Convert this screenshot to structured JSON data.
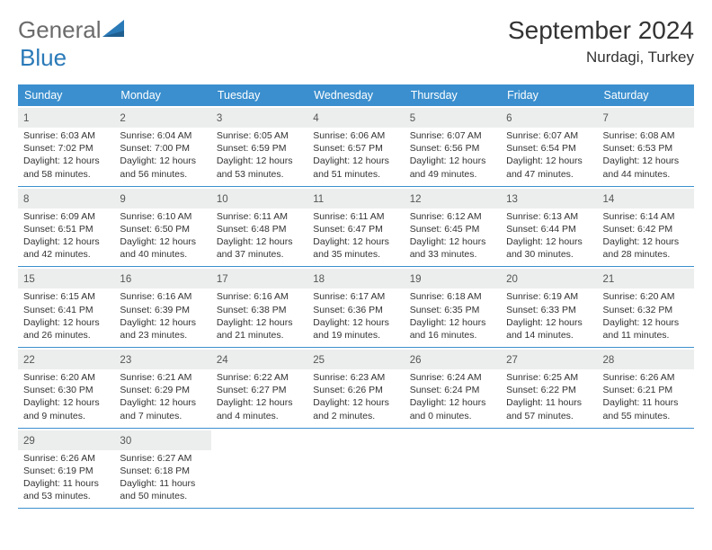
{
  "brand": {
    "name1": "General",
    "name2": "Blue"
  },
  "title": "September 2024",
  "location": "Nurdagi, Turkey",
  "colors": {
    "header_bg": "#3b8fce",
    "header_text": "#ffffff",
    "daynum_bg": "#eceded",
    "week_border": "#3b8fce",
    "body_text": "#333333",
    "page_bg": "#ffffff",
    "brand_gray": "#6b6b6b",
    "brand_blue": "#2a7ab8"
  },
  "days_of_week": [
    "Sunday",
    "Monday",
    "Tuesday",
    "Wednesday",
    "Thursday",
    "Friday",
    "Saturday"
  ],
  "weeks": [
    [
      {
        "n": "1",
        "sr": "Sunrise: 6:03 AM",
        "ss": "Sunset: 7:02 PM",
        "dl": "Daylight: 12 hours and 58 minutes."
      },
      {
        "n": "2",
        "sr": "Sunrise: 6:04 AM",
        "ss": "Sunset: 7:00 PM",
        "dl": "Daylight: 12 hours and 56 minutes."
      },
      {
        "n": "3",
        "sr": "Sunrise: 6:05 AM",
        "ss": "Sunset: 6:59 PM",
        "dl": "Daylight: 12 hours and 53 minutes."
      },
      {
        "n": "4",
        "sr": "Sunrise: 6:06 AM",
        "ss": "Sunset: 6:57 PM",
        "dl": "Daylight: 12 hours and 51 minutes."
      },
      {
        "n": "5",
        "sr": "Sunrise: 6:07 AM",
        "ss": "Sunset: 6:56 PM",
        "dl": "Daylight: 12 hours and 49 minutes."
      },
      {
        "n": "6",
        "sr": "Sunrise: 6:07 AM",
        "ss": "Sunset: 6:54 PM",
        "dl": "Daylight: 12 hours and 47 minutes."
      },
      {
        "n": "7",
        "sr": "Sunrise: 6:08 AM",
        "ss": "Sunset: 6:53 PM",
        "dl": "Daylight: 12 hours and 44 minutes."
      }
    ],
    [
      {
        "n": "8",
        "sr": "Sunrise: 6:09 AM",
        "ss": "Sunset: 6:51 PM",
        "dl": "Daylight: 12 hours and 42 minutes."
      },
      {
        "n": "9",
        "sr": "Sunrise: 6:10 AM",
        "ss": "Sunset: 6:50 PM",
        "dl": "Daylight: 12 hours and 40 minutes."
      },
      {
        "n": "10",
        "sr": "Sunrise: 6:11 AM",
        "ss": "Sunset: 6:48 PM",
        "dl": "Daylight: 12 hours and 37 minutes."
      },
      {
        "n": "11",
        "sr": "Sunrise: 6:11 AM",
        "ss": "Sunset: 6:47 PM",
        "dl": "Daylight: 12 hours and 35 minutes."
      },
      {
        "n": "12",
        "sr": "Sunrise: 6:12 AM",
        "ss": "Sunset: 6:45 PM",
        "dl": "Daylight: 12 hours and 33 minutes."
      },
      {
        "n": "13",
        "sr": "Sunrise: 6:13 AM",
        "ss": "Sunset: 6:44 PM",
        "dl": "Daylight: 12 hours and 30 minutes."
      },
      {
        "n": "14",
        "sr": "Sunrise: 6:14 AM",
        "ss": "Sunset: 6:42 PM",
        "dl": "Daylight: 12 hours and 28 minutes."
      }
    ],
    [
      {
        "n": "15",
        "sr": "Sunrise: 6:15 AM",
        "ss": "Sunset: 6:41 PM",
        "dl": "Daylight: 12 hours and 26 minutes."
      },
      {
        "n": "16",
        "sr": "Sunrise: 6:16 AM",
        "ss": "Sunset: 6:39 PM",
        "dl": "Daylight: 12 hours and 23 minutes."
      },
      {
        "n": "17",
        "sr": "Sunrise: 6:16 AM",
        "ss": "Sunset: 6:38 PM",
        "dl": "Daylight: 12 hours and 21 minutes."
      },
      {
        "n": "18",
        "sr": "Sunrise: 6:17 AM",
        "ss": "Sunset: 6:36 PM",
        "dl": "Daylight: 12 hours and 19 minutes."
      },
      {
        "n": "19",
        "sr": "Sunrise: 6:18 AM",
        "ss": "Sunset: 6:35 PM",
        "dl": "Daylight: 12 hours and 16 minutes."
      },
      {
        "n": "20",
        "sr": "Sunrise: 6:19 AM",
        "ss": "Sunset: 6:33 PM",
        "dl": "Daylight: 12 hours and 14 minutes."
      },
      {
        "n": "21",
        "sr": "Sunrise: 6:20 AM",
        "ss": "Sunset: 6:32 PM",
        "dl": "Daylight: 12 hours and 11 minutes."
      }
    ],
    [
      {
        "n": "22",
        "sr": "Sunrise: 6:20 AM",
        "ss": "Sunset: 6:30 PM",
        "dl": "Daylight: 12 hours and 9 minutes."
      },
      {
        "n": "23",
        "sr": "Sunrise: 6:21 AM",
        "ss": "Sunset: 6:29 PM",
        "dl": "Daylight: 12 hours and 7 minutes."
      },
      {
        "n": "24",
        "sr": "Sunrise: 6:22 AM",
        "ss": "Sunset: 6:27 PM",
        "dl": "Daylight: 12 hours and 4 minutes."
      },
      {
        "n": "25",
        "sr": "Sunrise: 6:23 AM",
        "ss": "Sunset: 6:26 PM",
        "dl": "Daylight: 12 hours and 2 minutes."
      },
      {
        "n": "26",
        "sr": "Sunrise: 6:24 AM",
        "ss": "Sunset: 6:24 PM",
        "dl": "Daylight: 12 hours and 0 minutes."
      },
      {
        "n": "27",
        "sr": "Sunrise: 6:25 AM",
        "ss": "Sunset: 6:22 PM",
        "dl": "Daylight: 11 hours and 57 minutes."
      },
      {
        "n": "28",
        "sr": "Sunrise: 6:26 AM",
        "ss": "Sunset: 6:21 PM",
        "dl": "Daylight: 11 hours and 55 minutes."
      }
    ],
    [
      {
        "n": "29",
        "sr": "Sunrise: 6:26 AM",
        "ss": "Sunset: 6:19 PM",
        "dl": "Daylight: 11 hours and 53 minutes."
      },
      {
        "n": "30",
        "sr": "Sunrise: 6:27 AM",
        "ss": "Sunset: 6:18 PM",
        "dl": "Daylight: 11 hours and 50 minutes."
      },
      null,
      null,
      null,
      null,
      null
    ]
  ]
}
